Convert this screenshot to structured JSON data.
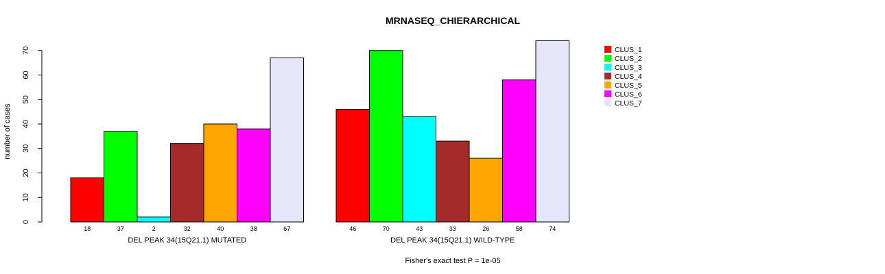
{
  "chart_data": {
    "type": "bar",
    "title": "MRNASEQ_CHIERARCHICAL",
    "ylabel": "number of cases",
    "ylim": [
      0,
      70
    ],
    "yticks": [
      0,
      10,
      20,
      30,
      40,
      50,
      60,
      70
    ],
    "footnote": "Fisher's exact test P = 1e-05",
    "legend_position": "top-right",
    "series": [
      {
        "name": "CLUS_1",
        "color": "#ff0000"
      },
      {
        "name": "CLUS_2",
        "color": "#00ff00"
      },
      {
        "name": "CLUS_3",
        "color": "#00ffff"
      },
      {
        "name": "CLUS_4",
        "color": "#a52a2a"
      },
      {
        "name": "CLUS_5",
        "color": "#ffa500"
      },
      {
        "name": "CLUS_6",
        "color": "#ff00ff"
      },
      {
        "name": "CLUS_7",
        "color": "#e6e6fa"
      }
    ],
    "groups": [
      {
        "label": "DEL PEAK 34(15Q21.1) MUTATED",
        "values": [
          18,
          37,
          2,
          32,
          40,
          38,
          67
        ]
      },
      {
        "label": "DEL PEAK 34(15Q21.1) WILD-TYPE",
        "values": [
          46,
          70,
          43,
          33,
          26,
          58,
          74
        ]
      }
    ]
  }
}
